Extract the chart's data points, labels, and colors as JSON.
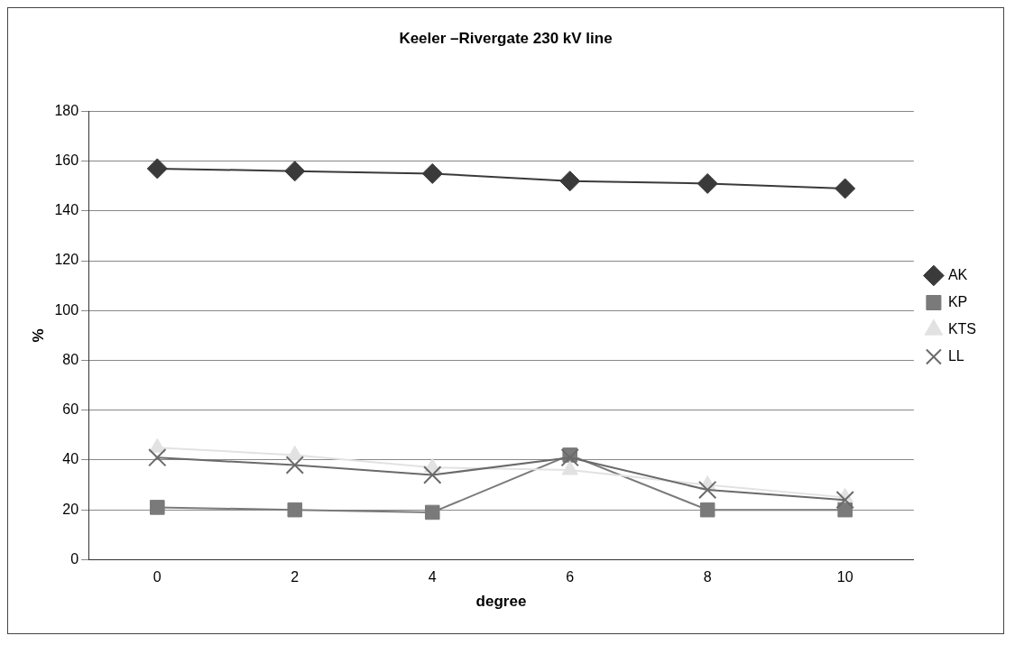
{
  "chart_data": {
    "type": "line",
    "title": "Keeler –Rivergate 230 kV line",
    "xlabel": "degree",
    "ylabel": "%",
    "categories": [
      "0",
      "2",
      "4",
      "6",
      "8",
      "10"
    ],
    "series": [
      {
        "name": "AK",
        "color": "#3a3a3a",
        "marker": "diamond",
        "values": [
          157,
          156,
          155,
          152,
          151,
          149
        ]
      },
      {
        "name": "KP",
        "color": "#7a7a7a",
        "marker": "square",
        "values": [
          21,
          20,
          19,
          42,
          20,
          20
        ]
      },
      {
        "name": "KTS",
        "color": "#e2e2e2",
        "marker": "triangle",
        "values": [
          45,
          42,
          37,
          36,
          30,
          25
        ]
      },
      {
        "name": "LL",
        "color": "#6a6a6a",
        "marker": "cross",
        "values": [
          41,
          38,
          34,
          41,
          28,
          24
        ]
      }
    ],
    "ylim": [
      0,
      180
    ],
    "yticks": [
      0,
      20,
      40,
      60,
      80,
      100,
      120,
      140,
      160,
      180
    ],
    "grid": "y",
    "legend": "right"
  }
}
